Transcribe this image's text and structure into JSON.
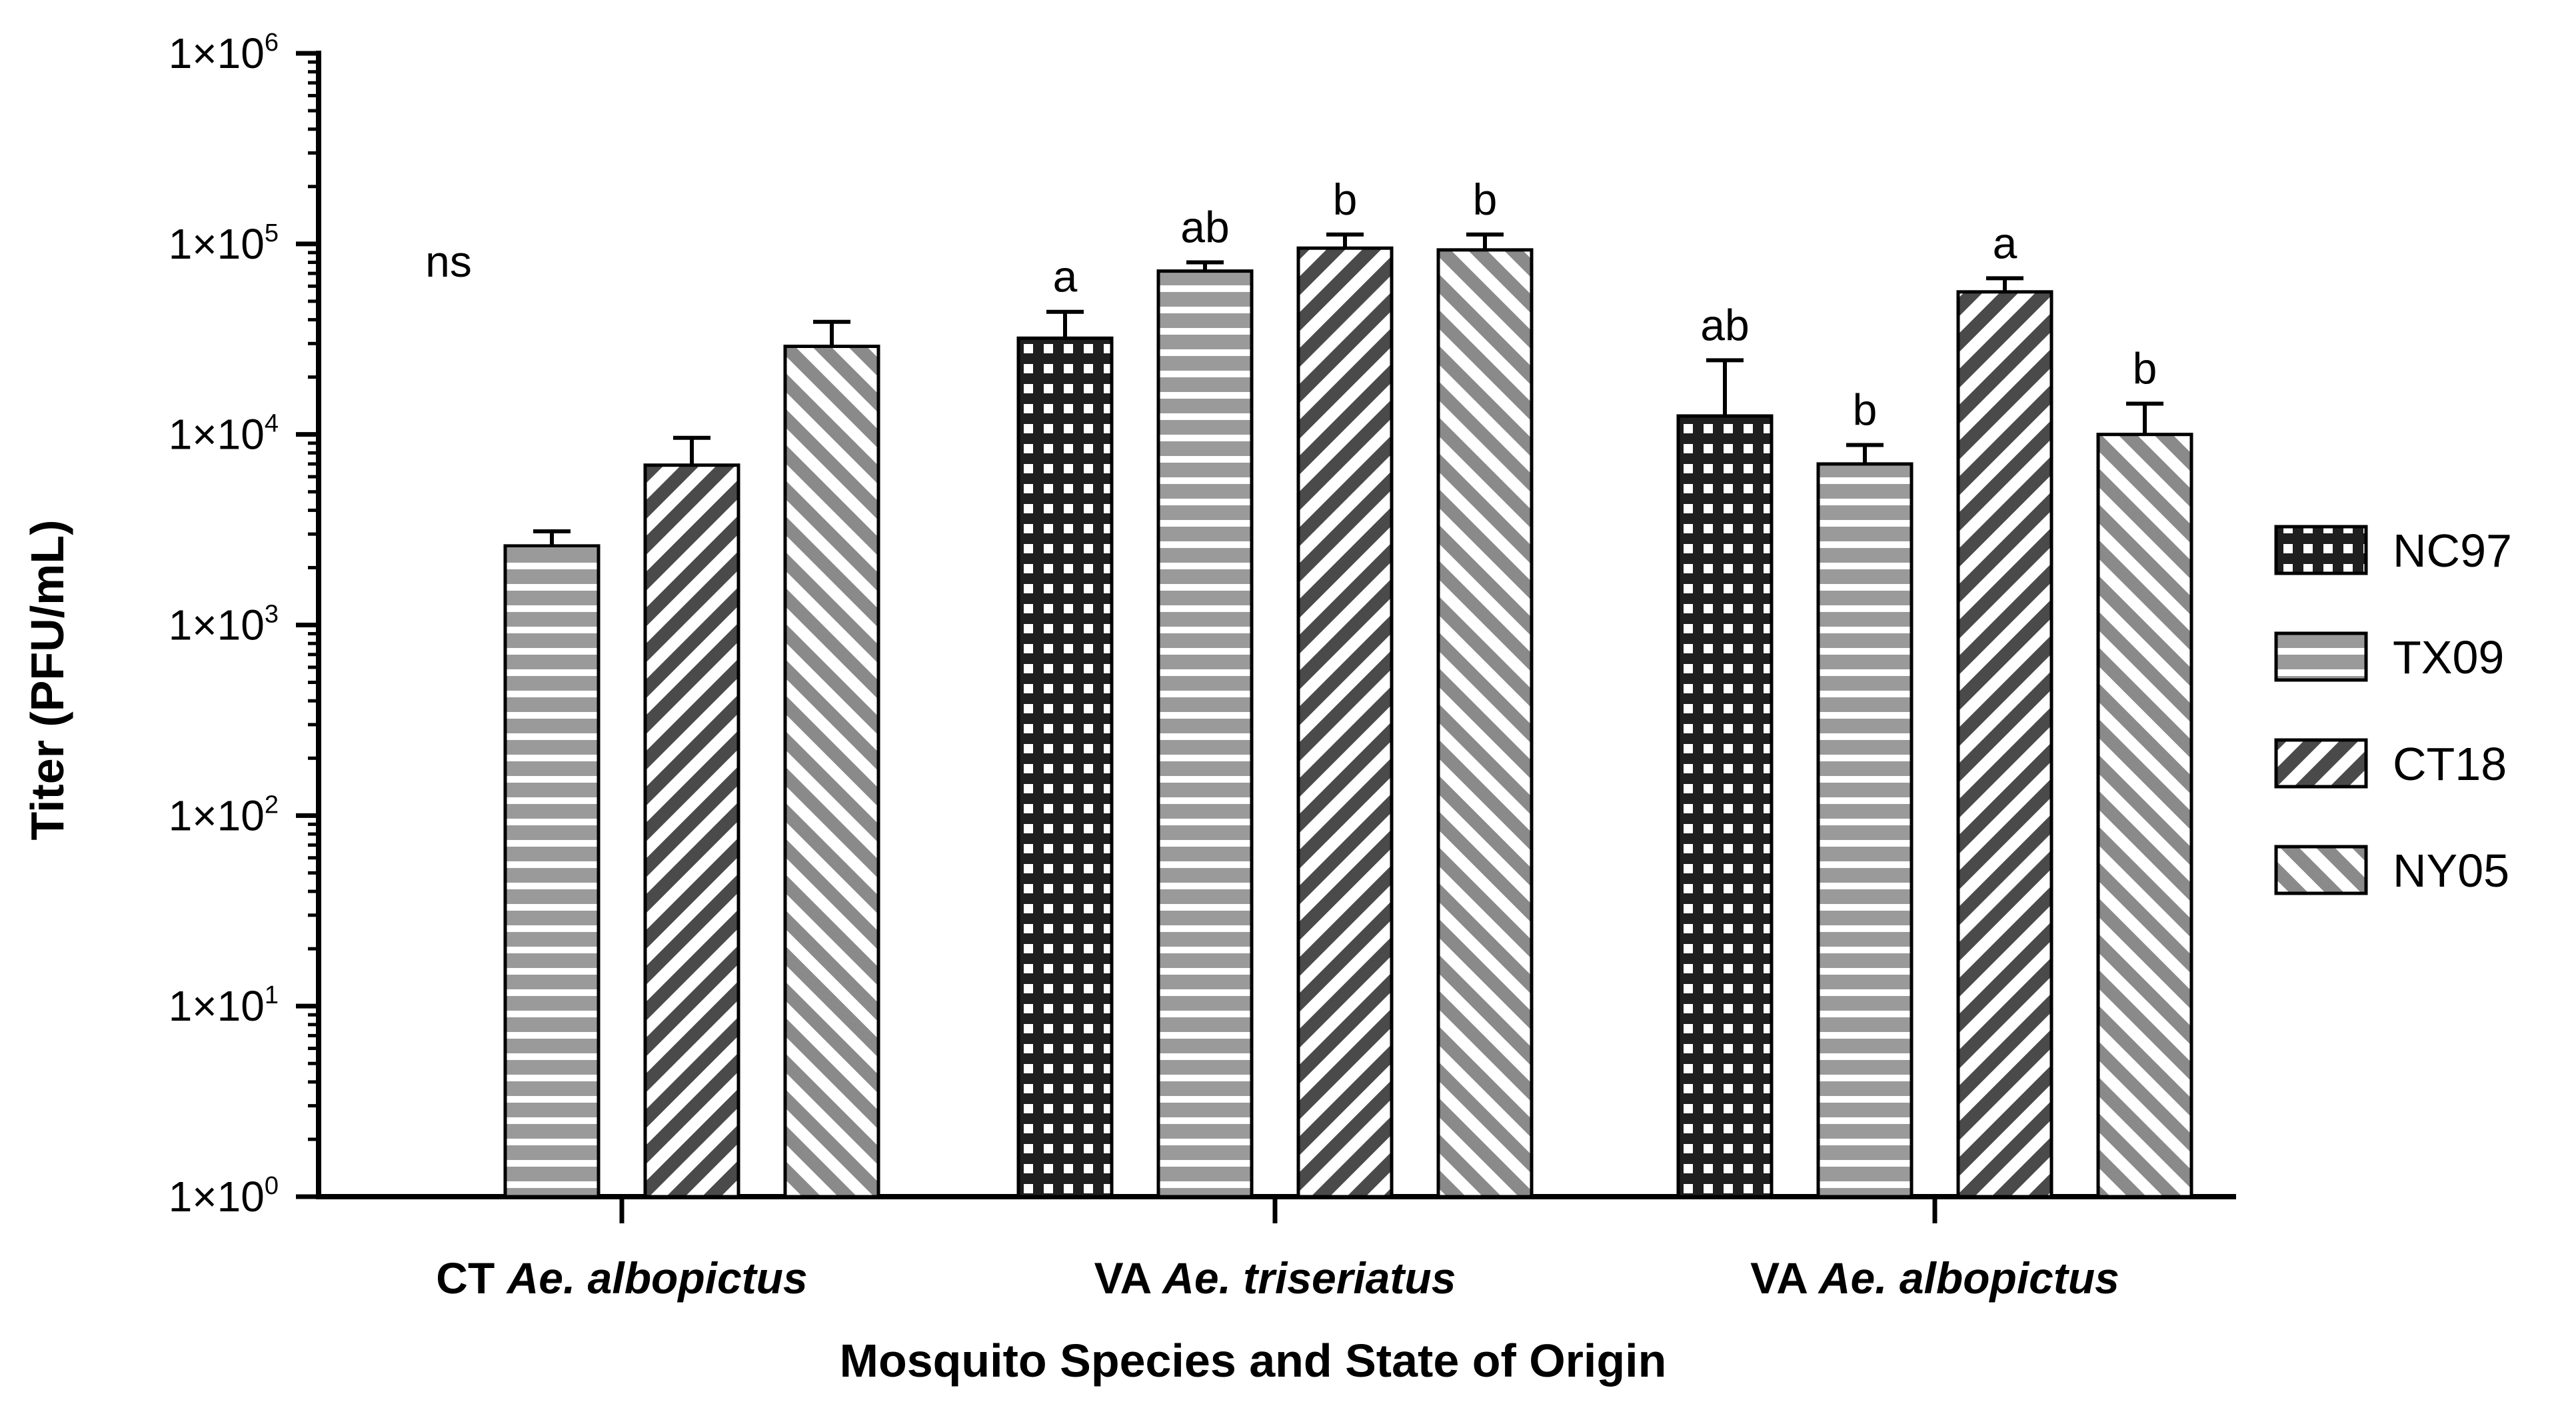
{
  "chart_data": {
    "type": "bar",
    "scale": "log10",
    "xlabel": "Mosquito Species and State of Origin",
    "ylabel": "Titer (PFU/mL)",
    "ylim": [
      1,
      1000000
    ],
    "yticks": [
      {
        "base": "1×10",
        "exp": "0"
      },
      {
        "base": "1×10",
        "exp": "1"
      },
      {
        "base": "1×10",
        "exp": "2"
      },
      {
        "base": "1×10",
        "exp": "3"
      },
      {
        "base": "1×10",
        "exp": "4"
      },
      {
        "base": "1×10",
        "exp": "5"
      },
      {
        "base": "1×10",
        "exp": "6"
      }
    ],
    "groups": [
      {
        "prefix": "CT",
        "species": "Ae. albopictus",
        "group_annotation": "ns"
      },
      {
        "prefix": "VA",
        "species": "Ae. triseriatus",
        "group_annotation": ""
      },
      {
        "prefix": "VA",
        "species": "Ae. albopictus",
        "group_annotation": ""
      }
    ],
    "series": [
      {
        "name": "NC97",
        "pattern": "grid",
        "values": [
          null,
          32000,
          12500
        ],
        "errors": [
          null,
          44000,
          24500
        ],
        "labels": [
          "",
          "a",
          "ab"
        ]
      },
      {
        "name": "TX09",
        "pattern": "horizontal",
        "values": [
          2600,
          72000,
          7000
        ],
        "errors": [
          3100,
          80000,
          8800
        ],
        "labels": [
          "",
          "ab",
          "b"
        ]
      },
      {
        "name": "CT18",
        "pattern": "diag-down",
        "values": [
          6900,
          95000,
          56000
        ],
        "errors": [
          9600,
          112000,
          66000
        ],
        "labels": [
          "",
          "b",
          "a"
        ]
      },
      {
        "name": "NY05",
        "pattern": "diag-up",
        "values": [
          29000,
          93000,
          10000
        ],
        "errors": [
          39000,
          112000,
          14500
        ],
        "labels": [
          "",
          "b",
          "b"
        ]
      }
    ]
  }
}
